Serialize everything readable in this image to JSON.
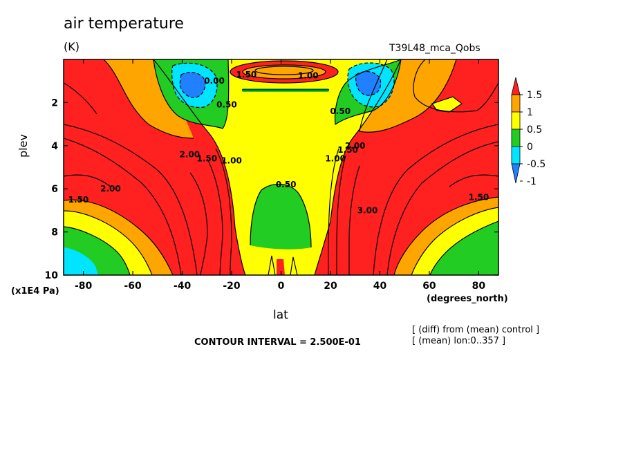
{
  "chart_data": {
    "type": "heatmap",
    "title": "air temperature",
    "units": "(K)",
    "run_name": "T39L48_mca_Qobs",
    "xlabel": "lat",
    "xunits": "(degrees_north)",
    "ylabel": "plev",
    "ymultiplier": "(x1E4 Pa)",
    "x_ticks": [
      -80,
      -60,
      -40,
      -20,
      0,
      20,
      40,
      60,
      80
    ],
    "x_tick_labels": [
      "-80",
      "-60",
      "-40",
      "-20",
      "0",
      "20",
      "40",
      "60",
      "80"
    ],
    "y_ticks": [
      2,
      4,
      6,
      8,
      10
    ],
    "y_tick_labels": [
      "2",
      "4",
      "6",
      "8",
      "10"
    ],
    "xlim": [
      -88,
      88
    ],
    "ylim": [
      0,
      10
    ],
    "y_inverted": true,
    "contour_interval": "CONTOUR INTERVAL = 2.500E-01",
    "notes": [
      "[ (diff) from (mean) control ]",
      "[ (mean) lon:0..357 ]"
    ],
    "colorbar": {
      "labels": [
        "1.5",
        "1",
        "0.5",
        "0",
        "-0.5",
        "-1"
      ],
      "colors": [
        "#ff2020",
        "#ffa500",
        "#ffff00",
        "#22cc22",
        "#00e5ff",
        "#2080ff",
        "#ff2020"
      ]
    },
    "contour_labels": [
      {
        "text": "1.50",
        "lat": -14,
        "plev": 0.7
      },
      {
        "text": "1.00",
        "lat": 11,
        "plev": 0.75
      },
      {
        "text": "0.00",
        "lat": -27,
        "plev": 1.0
      },
      {
        "text": "0.50",
        "lat": -22,
        "plev": 2.1
      },
      {
        "text": "0.50",
        "lat": 24,
        "plev": 2.4
      },
      {
        "text": "2.00",
        "lat": -37,
        "plev": 4.4
      },
      {
        "text": "1.50",
        "lat": -30,
        "plev": 4.6
      },
      {
        "text": "1.00",
        "lat": -20,
        "plev": 4.7
      },
      {
        "text": "1.00",
        "lat": 22,
        "plev": 4.6
      },
      {
        "text": "1.50",
        "lat": 27,
        "plev": 4.2
      },
      {
        "text": "2.00",
        "lat": 30,
        "plev": 4.0
      },
      {
        "text": "0.50",
        "lat": 2,
        "plev": 5.8
      },
      {
        "text": "2.00",
        "lat": -69,
        "plev": 6.0
      },
      {
        "text": "1.50",
        "lat": -82,
        "plev": 6.5
      },
      {
        "text": "1.50",
        "lat": 80,
        "plev": 6.4
      },
      {
        "text": "3.00",
        "lat": 35,
        "plev": 7.0
      }
    ]
  }
}
